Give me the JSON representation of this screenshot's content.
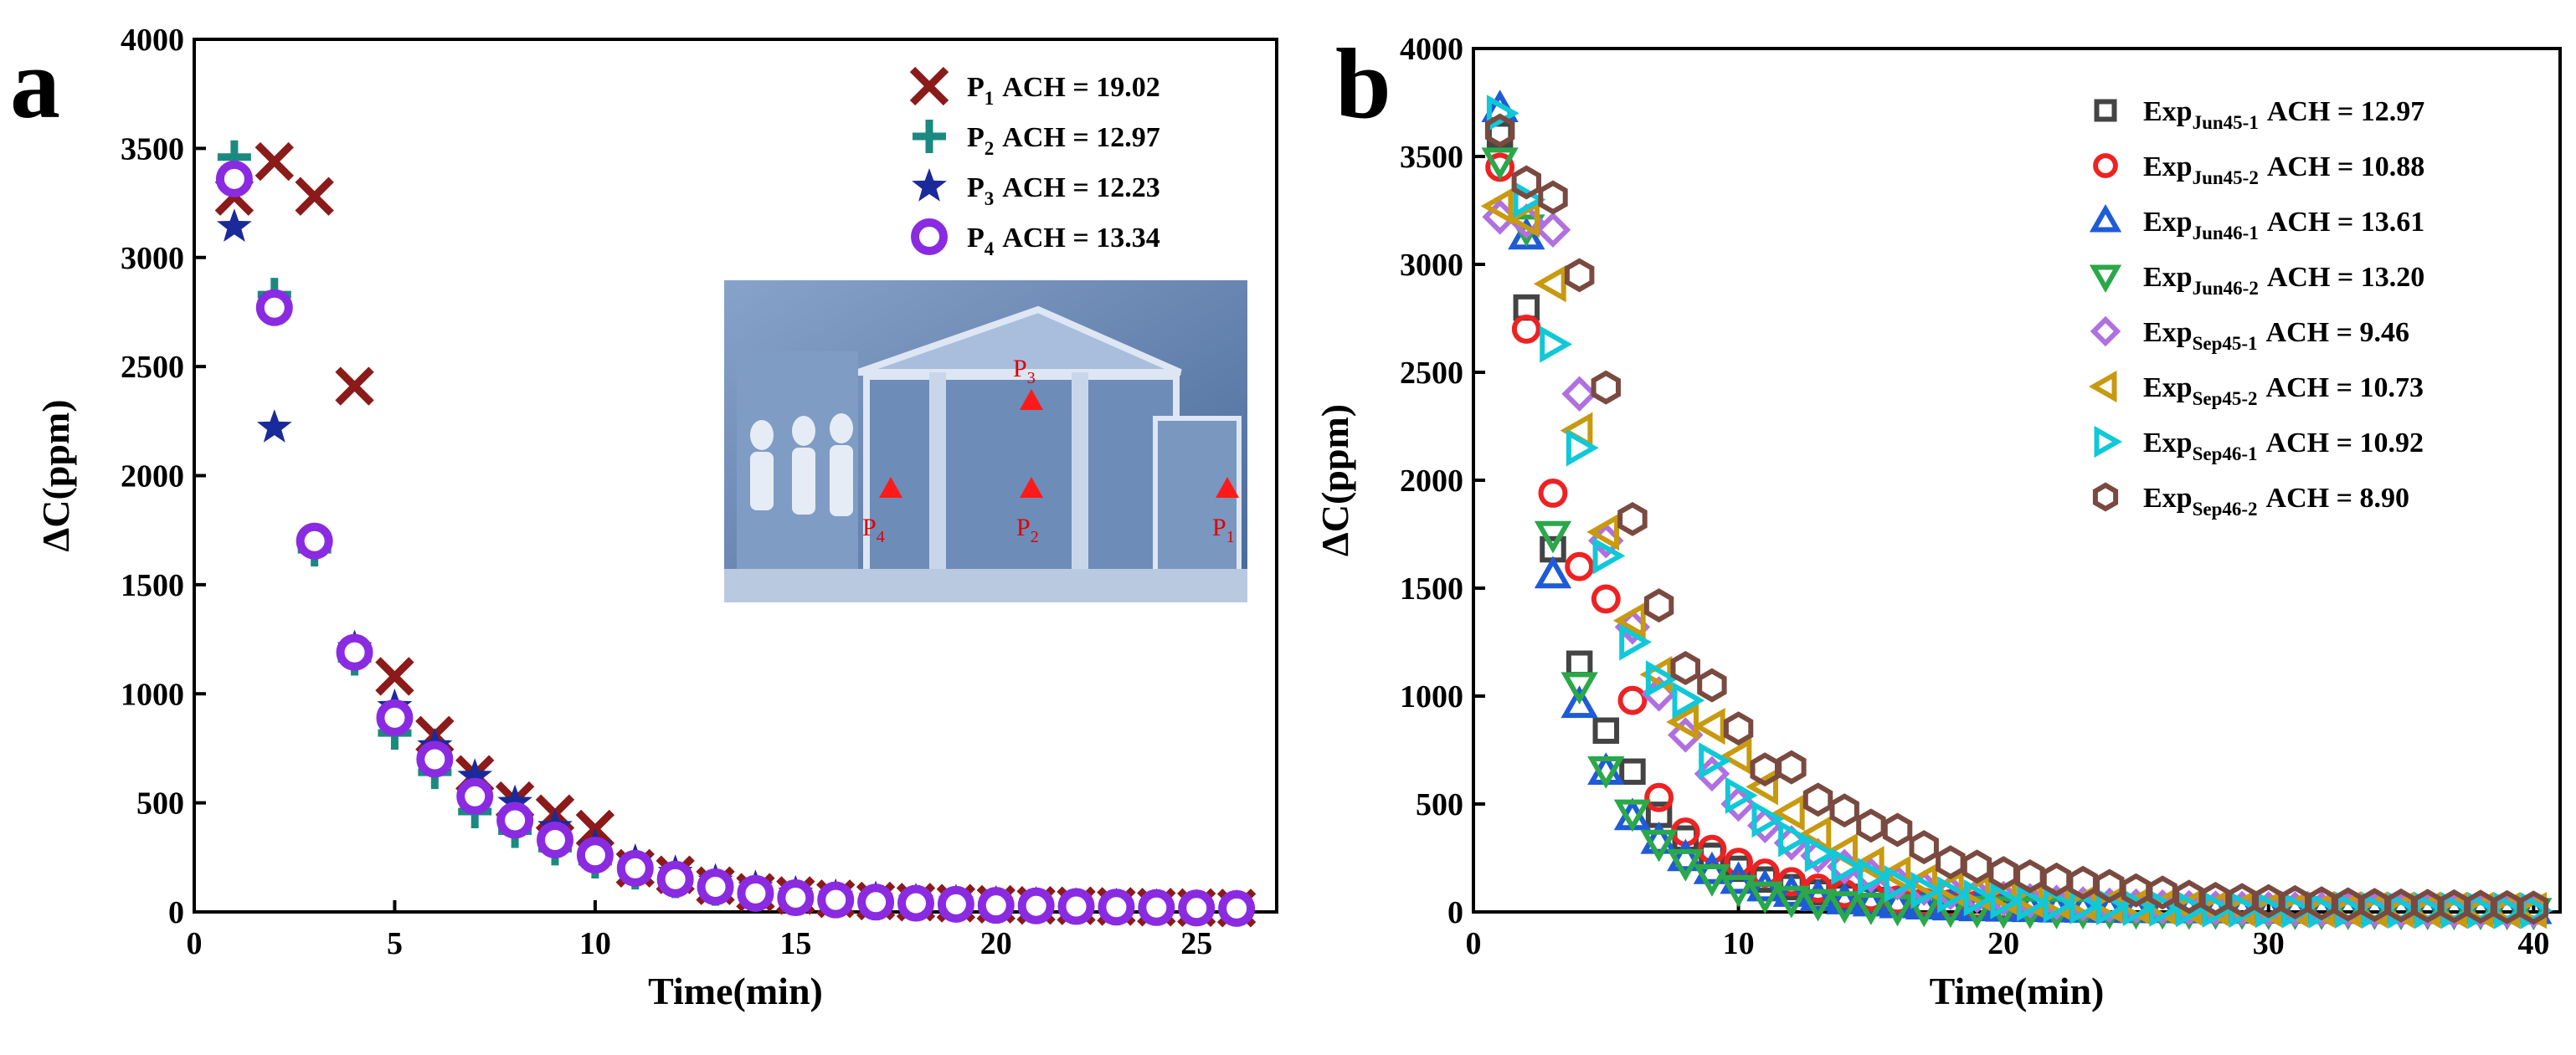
{
  "chart_data": [
    {
      "panel": "a",
      "type": "scatter",
      "xlabel": "Time(min)",
      "ylabel": "ΔC(ppm)",
      "xlim": [
        0,
        27
      ],
      "ylim": [
        0,
        4000
      ],
      "xticks": [
        0,
        5,
        10,
        15,
        20,
        25
      ],
      "yticks": [
        0,
        500,
        1000,
        1500,
        2000,
        2500,
        3000,
        3500,
        4000
      ],
      "legend_position": "top-right",
      "series": [
        {
          "name": "P",
          "sub": "1",
          "ach_text": "ACH = 19.02",
          "marker": "x",
          "color": "#8b1a1a",
          "x": [
            1,
            2,
            3,
            4,
            5,
            6,
            7,
            8,
            9,
            10,
            11,
            12,
            13,
            14,
            15,
            16,
            17,
            18,
            19,
            20,
            21,
            22,
            23,
            24,
            25,
            26
          ],
          "y": [
            3280,
            3440,
            3280,
            2410,
            1080,
            810,
            630,
            510,
            450,
            380,
            200,
            170,
            120,
            90,
            75,
            60,
            50,
            45,
            40,
            35,
            30,
            28,
            25,
            22,
            20,
            18
          ]
        },
        {
          "name": "P",
          "sub": "2",
          "ach_text": "ACH = 12.97",
          "marker": "plus",
          "color": "#1a8a80",
          "x": [
            1,
            2,
            3,
            4,
            5,
            6,
            7,
            8,
            9,
            10,
            11,
            12,
            13,
            14,
            15,
            16,
            17,
            18,
            19,
            20,
            21,
            22,
            23,
            24,
            25,
            26
          ],
          "y": [
            3460,
            2830,
            1660,
            1160,
            820,
            640,
            460,
            370,
            290,
            230,
            180,
            140,
            105,
            80,
            65,
            55,
            45,
            40,
            35,
            30,
            28,
            25,
            22,
            20,
            18,
            16
          ]
        },
        {
          "name": "P",
          "sub": "3",
          "ach_text": "ACH = 12.23",
          "marker": "star",
          "color": "#1a2a9a",
          "x": [
            1,
            2,
            3,
            4,
            5,
            6,
            7,
            8,
            9,
            10,
            11,
            12,
            13,
            14,
            15,
            16,
            17,
            18,
            19,
            20,
            21,
            22,
            23,
            24,
            25,
            26
          ],
          "y": [
            3140,
            2220,
            1700,
            1210,
            940,
            760,
            620,
            500,
            390,
            300,
            230,
            180,
            140,
            110,
            85,
            70,
            60,
            50,
            45,
            40,
            35,
            30,
            28,
            25,
            22,
            20
          ]
        },
        {
          "name": "P",
          "sub": "4",
          "ach_text": "ACH = 13.34",
          "marker": "ring",
          "color": "#8a2be2",
          "x": [
            1,
            2,
            3,
            4,
            5,
            6,
            7,
            8,
            9,
            10,
            11,
            12,
            13,
            14,
            15,
            16,
            17,
            18,
            19,
            20,
            21,
            22,
            23,
            24,
            25,
            26
          ],
          "y": [
            3360,
            2770,
            1700,
            1190,
            890,
            700,
            530,
            420,
            330,
            260,
            200,
            150,
            115,
            85,
            65,
            55,
            45,
            40,
            35,
            30,
            28,
            25,
            22,
            20,
            18,
            16
          ]
        }
      ],
      "inset": {
        "description_labels": [
          "P",
          "P",
          "P",
          "P"
        ],
        "label_subs": [
          "3",
          "4",
          "2",
          "1"
        ]
      }
    },
    {
      "panel": "b",
      "type": "scatter",
      "xlabel": "Time(min)",
      "ylabel": "ΔC(ppm)",
      "xlim": [
        0,
        41
      ],
      "ylim": [
        0,
        4000
      ],
      "xticks": [
        0,
        10,
        20,
        30,
        40
      ],
      "yticks": [
        0,
        500,
        1000,
        1500,
        2000,
        2500,
        3000,
        3500,
        4000
      ],
      "legend_position": "top-right",
      "series": [
        {
          "name": "Exp",
          "sub": "Jun45-1",
          "ach_text": "ACH = 12.97",
          "marker": "square",
          "color": "#444444",
          "decay": 0.2594,
          "x": [
            1,
            2,
            3,
            4,
            5,
            6,
            7,
            8,
            9,
            10,
            11,
            12,
            13,
            14,
            15,
            16,
            17,
            18,
            19,
            20,
            21,
            22,
            23,
            24,
            25,
            26,
            27,
            28,
            29,
            30,
            31,
            32,
            33,
            34,
            35,
            36,
            37,
            38,
            39,
            40
          ],
          "y": [
            3600,
            2800,
            1680,
            1150,
            840,
            650,
            450,
            340,
            260,
            200,
            150,
            115,
            90,
            70,
            55,
            45,
            35,
            30,
            25,
            22,
            20,
            18,
            16,
            15,
            14,
            13,
            12,
            11,
            10,
            10,
            9,
            9,
            8,
            8,
            8,
            7,
            7,
            7,
            6,
            6
          ]
        },
        {
          "name": "Exp",
          "sub": "Jun45-2",
          "ach_text": "ACH = 10.88",
          "marker": "circle",
          "color": "#ee2222",
          "x": [
            1,
            2,
            3,
            4,
            5,
            6,
            7,
            8,
            9,
            10,
            11,
            12,
            13,
            14,
            15,
            16,
            17,
            18,
            19,
            20,
            21,
            22,
            23,
            24,
            25,
            26,
            27,
            28,
            29,
            30,
            31,
            32,
            33,
            34,
            35,
            36,
            37,
            38,
            39,
            40
          ],
          "y": [
            3450,
            2700,
            1940,
            1600,
            1450,
            980,
            530,
            370,
            290,
            230,
            180,
            140,
            110,
            85,
            70,
            55,
            45,
            38,
            32,
            27,
            23,
            20,
            18,
            16,
            15,
            14,
            13,
            12,
            11,
            10,
            10,
            9,
            9,
            8,
            8,
            8,
            7,
            7,
            7,
            6
          ]
        },
        {
          "name": "Exp",
          "sub": "Jun46-1",
          "ach_text": "ACH = 13.61",
          "marker": "triangle-up",
          "color": "#1e5bd8",
          "x": [
            1,
            2,
            3,
            4,
            5,
            6,
            7,
            8,
            9,
            10,
            11,
            12,
            13,
            14,
            15,
            16,
            17,
            18,
            19,
            20,
            21,
            22,
            23,
            24,
            25,
            26,
            27,
            28,
            29,
            30,
            31,
            32,
            33,
            34,
            35,
            36,
            37,
            38,
            39,
            40
          ],
          "y": [
            3720,
            3130,
            1560,
            960,
            650,
            440,
            330,
            250,
            190,
            145,
            110,
            85,
            65,
            50,
            40,
            32,
            26,
            22,
            18,
            16,
            14,
            12,
            11,
            10,
            9,
            9,
            8,
            8,
            7,
            7,
            7,
            6,
            6,
            6,
            6,
            5,
            5,
            5,
            5,
            5
          ]
        },
        {
          "name": "Exp",
          "sub": "Jun46-2",
          "ach_text": "ACH = 13.20",
          "marker": "triangle-down",
          "color": "#2aa84a",
          "x": [
            1,
            2,
            3,
            4,
            5,
            6,
            7,
            8,
            9,
            10,
            11,
            12,
            13,
            14,
            15,
            16,
            17,
            18,
            19,
            20,
            21,
            22,
            23,
            24,
            25,
            26,
            27,
            28,
            29,
            30,
            31,
            32,
            33,
            34,
            35,
            36,
            37,
            38,
            39,
            40
          ],
          "y": [
            3480,
            3170,
            1750,
            1050,
            660,
            460,
            320,
            230,
            160,
            110,
            80,
            60,
            45,
            35,
            28,
            22,
            18,
            15,
            13,
            11,
            10,
            9,
            8,
            8,
            7,
            7,
            6,
            6,
            6,
            5,
            5,
            5,
            5,
            5,
            4,
            4,
            4,
            4,
            4,
            4
          ]
        },
        {
          "name": "Exp",
          "sub": "Sep45-1",
          "ach_text": "ACH = 9.46",
          "marker": "diamond",
          "color": "#b070e0",
          "x": [
            1,
            2,
            3,
            4,
            5,
            6,
            7,
            8,
            9,
            10,
            11,
            12,
            13,
            14,
            15,
            16,
            17,
            18,
            19,
            20,
            21,
            22,
            23,
            24,
            25,
            26,
            27,
            28,
            29,
            30,
            31,
            32,
            33,
            34,
            35,
            36,
            37,
            38,
            39,
            40
          ],
          "y": [
            3220,
            3200,
            3160,
            2400,
            1720,
            1320,
            1010,
            820,
            640,
            500,
            400,
            320,
            260,
            210,
            170,
            135,
            110,
            90,
            75,
            62,
            52,
            44,
            37,
            31,
            27,
            23,
            20,
            18,
            16,
            14,
            13,
            12,
            11,
            10,
            9,
            9,
            8,
            8,
            7,
            7
          ]
        },
        {
          "name": "Exp",
          "sub": "Sep45-2",
          "ach_text": "ACH = 10.73",
          "marker": "triangle-left",
          "color": "#c89a10",
          "x": [
            1,
            2,
            3,
            4,
            5,
            6,
            7,
            8,
            9,
            10,
            11,
            12,
            13,
            14,
            15,
            16,
            17,
            18,
            19,
            20,
            21,
            22,
            23,
            24,
            25,
            26,
            27,
            28,
            29,
            30,
            31,
            32,
            33,
            34,
            35,
            36,
            37,
            38,
            39,
            40
          ],
          "y": [
            3270,
            3210,
            2910,
            2230,
            1760,
            1350,
            1100,
            880,
            860,
            720,
            580,
            460,
            360,
            280,
            220,
            175,
            140,
            110,
            90,
            72,
            58,
            48,
            40,
            33,
            28,
            24,
            21,
            18,
            16,
            14,
            13,
            12,
            11,
            10,
            9,
            9,
            8,
            8,
            7,
            7
          ]
        },
        {
          "name": "Exp",
          "sub": "Sep46-1",
          "ach_text": "ACH = 10.92",
          "marker": "triangle-right",
          "color": "#10c8d8",
          "x": [
            1,
            2,
            3,
            4,
            5,
            6,
            7,
            8,
            9,
            10,
            11,
            12,
            13,
            14,
            15,
            16,
            17,
            18,
            19,
            20,
            21,
            22,
            23,
            24,
            25,
            26,
            27,
            28,
            29,
            30,
            31,
            32,
            33,
            34,
            35,
            36,
            37,
            38,
            39,
            40
          ],
          "y": [
            3700,
            3300,
            2630,
            2150,
            1650,
            1250,
            1080,
            980,
            700,
            540,
            430,
            340,
            270,
            210,
            165,
            130,
            100,
            80,
            65,
            52,
            42,
            35,
            29,
            24,
            20,
            17,
            15,
            13,
            12,
            11,
            10,
            9,
            9,
            8,
            8,
            7,
            7,
            7,
            6,
            6
          ]
        },
        {
          "name": "Exp",
          "sub": "Sep46-2",
          "ach_text": "ACH = 8.90",
          "marker": "hexagon",
          "color": "#7a4a40",
          "x": [
            1,
            2,
            3,
            4,
            5,
            6,
            7,
            8,
            9,
            10,
            11,
            12,
            13,
            14,
            15,
            16,
            17,
            18,
            19,
            20,
            21,
            22,
            23,
            24,
            25,
            26,
            27,
            28,
            29,
            30,
            31,
            32,
            33,
            34,
            35,
            36,
            37,
            38,
            39,
            40
          ],
          "y": [
            3620,
            3380,
            3310,
            2950,
            2430,
            1820,
            1420,
            1130,
            1050,
            850,
            660,
            670,
            520,
            470,
            400,
            380,
            300,
            230,
            210,
            180,
            165,
            150,
            135,
            120,
            100,
            90,
            70,
            60,
            55,
            50,
            45,
            40,
            35,
            32,
            30,
            28,
            26,
            24,
            22,
            20
          ]
        }
      ]
    }
  ]
}
